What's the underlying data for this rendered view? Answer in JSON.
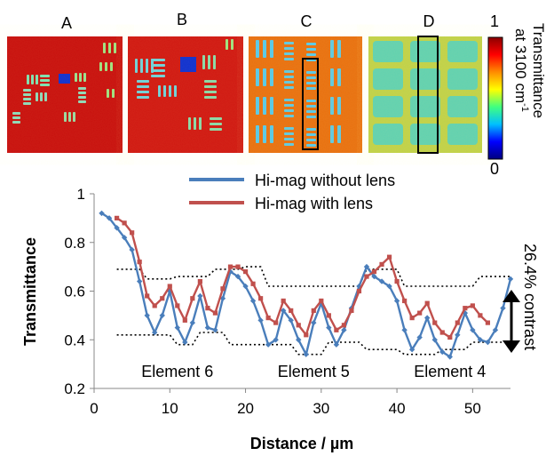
{
  "panels": [
    {
      "label": "A",
      "style": "a"
    },
    {
      "label": "B",
      "style": "b"
    },
    {
      "label": "C",
      "style": "c"
    },
    {
      "label": "D",
      "style": "d"
    }
  ],
  "colorbar": {
    "max_label": "1",
    "min_label": "0",
    "title_line1": "Transmittance",
    "title_line2": "at 3100 cm",
    "title_sup": "-1",
    "stops": [
      "#00007f",
      "#0000ff",
      "#00bfff",
      "#40ff80",
      "#ffff00",
      "#ff8c00",
      "#ff0000",
      "#8b0000"
    ]
  },
  "chart_data": {
    "type": "line",
    "xlabel": "Distance / µm",
    "ylabel": "Transmittance",
    "xlim": [
      0,
      55
    ],
    "ylim": [
      0.2,
      1.0
    ],
    "xticks": [
      "0",
      "10",
      "20",
      "30",
      "40",
      "50"
    ],
    "yticks": [
      "0.2",
      "0.4",
      "0.6",
      "0.8",
      "1"
    ],
    "series": [
      {
        "name": "Hi-mag without lens",
        "color": "#4a7ebb",
        "marker": "diamond",
        "x": [
          1,
          2,
          3,
          4,
          5,
          6,
          7,
          8,
          9,
          10,
          11,
          12,
          13,
          14,
          15,
          16,
          17,
          18,
          19,
          20,
          21,
          22,
          23,
          24,
          25,
          26,
          27,
          28,
          29,
          30,
          31,
          32,
          33,
          34,
          35,
          36,
          37,
          38,
          39,
          40,
          41,
          42,
          43,
          44,
          45,
          46,
          47,
          48,
          49,
          50,
          51,
          52,
          53,
          54,
          55
        ],
        "values": [
          0.92,
          0.9,
          0.86,
          0.82,
          0.77,
          0.64,
          0.5,
          0.43,
          0.5,
          0.6,
          0.45,
          0.39,
          0.47,
          0.58,
          0.45,
          0.44,
          0.57,
          0.68,
          0.66,
          0.62,
          0.56,
          0.48,
          0.38,
          0.4,
          0.52,
          0.48,
          0.4,
          0.34,
          0.47,
          0.55,
          0.45,
          0.38,
          0.44,
          0.53,
          0.62,
          0.7,
          0.66,
          0.64,
          0.62,
          0.56,
          0.44,
          0.36,
          0.41,
          0.49,
          0.4,
          0.35,
          0.33,
          0.42,
          0.51,
          0.44,
          0.4,
          0.39,
          0.44,
          0.53,
          0.65
        ]
      },
      {
        "name": "Hi-mag with lens",
        "color": "#c0504d",
        "marker": "square",
        "x": [
          3,
          4,
          5,
          6,
          7,
          8,
          9,
          10,
          11,
          12,
          13,
          14,
          15,
          16,
          17,
          18,
          19,
          20,
          21,
          22,
          23,
          24,
          25,
          26,
          27,
          28,
          29,
          30,
          31,
          32,
          33,
          34,
          35,
          36,
          37,
          38,
          39,
          40,
          41,
          42,
          43,
          44,
          45,
          46,
          47,
          48,
          49,
          50,
          51,
          52
        ],
        "values": [
          0.9,
          0.88,
          0.84,
          0.72,
          0.58,
          0.54,
          0.57,
          0.62,
          0.54,
          0.48,
          0.57,
          0.64,
          0.53,
          0.51,
          0.61,
          0.7,
          0.7,
          0.68,
          0.63,
          0.57,
          0.49,
          0.47,
          0.56,
          0.52,
          0.46,
          0.42,
          0.52,
          0.56,
          0.5,
          0.44,
          0.46,
          0.52,
          0.6,
          0.66,
          0.68,
          0.71,
          0.74,
          0.64,
          0.56,
          0.49,
          0.51,
          0.55,
          0.47,
          0.43,
          0.41,
          0.47,
          0.53,
          0.54,
          0.5,
          0.47
        ]
      }
    ],
    "envelope_upper": {
      "x": [
        3,
        6,
        7,
        10,
        11,
        15,
        16,
        19,
        20,
        22,
        23,
        35,
        36,
        40,
        41,
        50,
        51,
        55
      ],
      "values": [
        0.69,
        0.69,
        0.65,
        0.65,
        0.66,
        0.66,
        0.69,
        0.69,
        0.7,
        0.7,
        0.62,
        0.62,
        0.69,
        0.69,
        0.62,
        0.62,
        0.66,
        0.66
      ]
    },
    "envelope_lower": {
      "x": [
        3,
        6,
        7,
        10,
        11,
        13,
        14,
        17,
        18,
        26,
        27,
        30,
        31,
        35,
        36,
        40,
        41,
        45,
        46,
        49,
        50,
        55
      ],
      "values": [
        0.42,
        0.42,
        0.42,
        0.42,
        0.38,
        0.38,
        0.43,
        0.43,
        0.38,
        0.38,
        0.34,
        0.34,
        0.39,
        0.39,
        0.36,
        0.36,
        0.34,
        0.34,
        0.36,
        0.36,
        0.39,
        0.39
      ]
    },
    "annotations": [
      {
        "text": "Element 6",
        "x": 11,
        "y": 0.27
      },
      {
        "text": "Element 5",
        "x": 29,
        "y": 0.27
      },
      {
        "text": "Element 4",
        "x": 47,
        "y": 0.27
      }
    ],
    "contrast_label": "26.4% contrast",
    "legend_position": "top-center"
  }
}
